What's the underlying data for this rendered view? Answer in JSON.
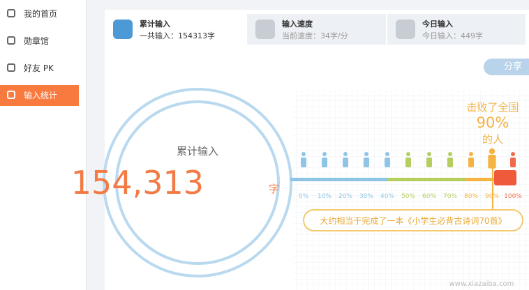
{
  "sidebar": {
    "items": [
      "我的首页",
      "勋章馆",
      "好友 PK",
      "输入统计"
    ]
  },
  "tabs": [
    {
      "title": "累计输入",
      "subtitle": "一共输入：154313字"
    },
    {
      "title": "输入速度",
      "subtitle": "当前速度：34字/分"
    },
    {
      "title": "今日输入",
      "subtitle": "今日输入：449字"
    }
  ],
  "share": "分享",
  "total": {
    "label": "累计输入",
    "number": "154,313",
    "unit": "字"
  },
  "beat": {
    "line1": "击败了全国",
    "percent": "90%",
    "line2": "的人"
  },
  "scale": [
    "0%",
    "10%",
    "20%",
    "30%",
    "40%",
    "50%",
    "60%",
    "70%",
    "80%",
    "90%",
    "100%"
  ],
  "banner": "大约相当于完成了一本《小学生必背古诗词70首》",
  "watermark": "www.xiazaiba.com"
}
